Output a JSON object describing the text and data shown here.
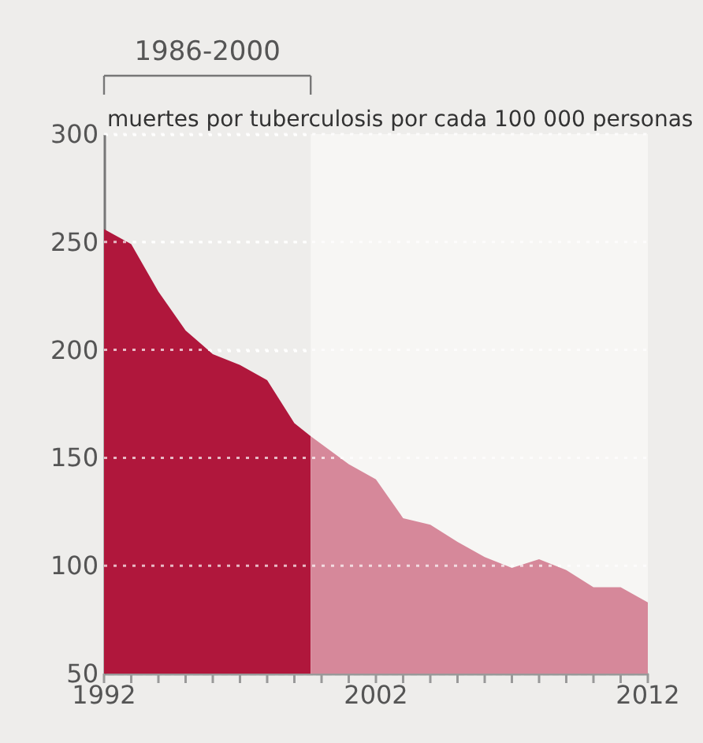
{
  "chart_data": {
    "type": "area",
    "ylabel": "muertes por tuberculosis por cada 100 000 personas",
    "annotations": [
      "1986-2000"
    ],
    "xlim": [
      1992,
      2012
    ],
    "ylim": [
      50,
      300
    ],
    "yticks": [
      50,
      100,
      150,
      200,
      250,
      300
    ],
    "xticks": [
      1992,
      {
        "value": 1993,
        "label": null
      },
      {
        "value": 1994,
        "label": null
      },
      {
        "value": 1995,
        "label": null
      },
      {
        "value": 1996,
        "label": null
      },
      {
        "value": 1997,
        "label": null
      },
      {
        "value": 1998,
        "label": null
      },
      {
        "value": 1999,
        "label": null
      },
      {
        "value": 2000,
        "label": null
      },
      {
        "value": 2001,
        "label": null
      },
      2002,
      {
        "value": 2003,
        "label": null
      },
      {
        "value": 2004,
        "label": null
      },
      {
        "value": 2005,
        "label": null
      },
      {
        "value": 2006,
        "label": null
      },
      {
        "value": 2007,
        "label": null
      },
      {
        "value": 2008,
        "label": null
      },
      {
        "value": 2009,
        "label": null
      },
      {
        "value": 2010,
        "label": null
      },
      {
        "value": 2011,
        "label": null
      },
      2012
    ],
    "grid": "y",
    "bands": [
      {
        "axis": "x",
        "from": 1999.6,
        "to": 2012,
        "color": "#f7f6f4"
      }
    ],
    "series": [
      {
        "color": "#b0173c",
        "x": [
          1992,
          1993,
          1994,
          1995,
          1996,
          1997,
          1998,
          1999,
          1999.6
        ],
        "values": [
          256,
          249,
          227,
          209,
          198,
          193,
          186,
          166,
          160
        ]
      },
      {
        "color": "#d6889a",
        "x": [
          1999.6,
          2001,
          2002,
          2003,
          2004,
          2005,
          2006,
          2007,
          2008,
          2009,
          2010,
          2011,
          2012
        ],
        "values": [
          160,
          147,
          140,
          122,
          119,
          111,
          104,
          99,
          103,
          98,
          90,
          90,
          83
        ]
      }
    ]
  }
}
